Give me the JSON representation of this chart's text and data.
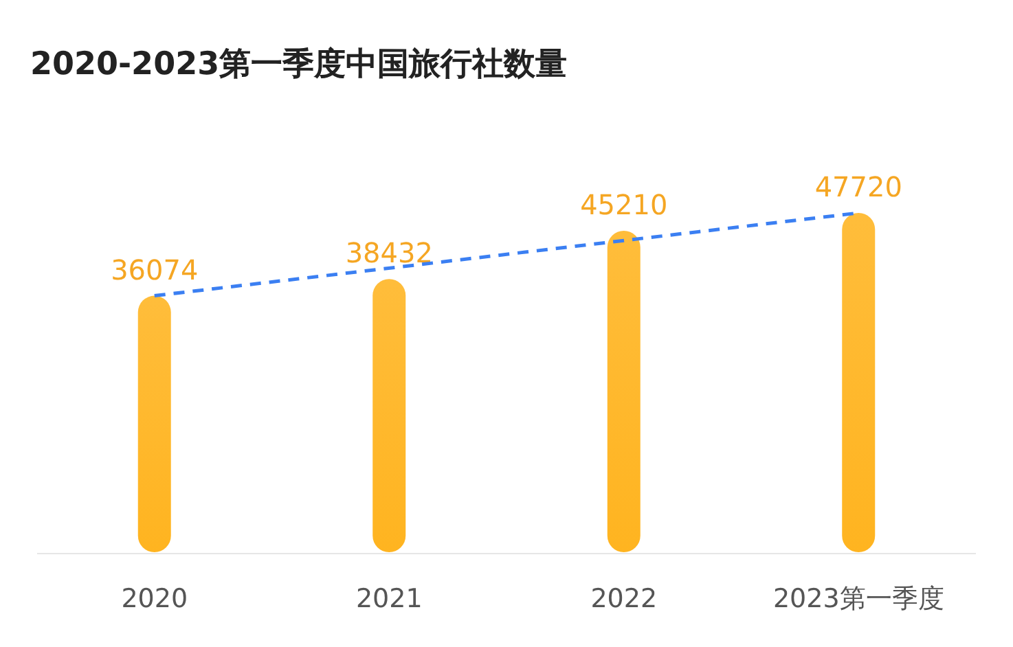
{
  "chart_data": {
    "type": "bar",
    "title": "2020-2023第一季度中国旅行社数量",
    "categories": [
      "2020",
      "2021",
      "2022",
      "2023第一季度"
    ],
    "series": [
      {
        "color": "#ffb420",
        "values": [
          36074,
          38432,
          45210,
          47720
        ],
        "value_labels": [
          "36074",
          "38432",
          "45210",
          "47720"
        ]
      },
      {
        "type": "line",
        "color": "#3b7ff2",
        "line_style": "dashed",
        "values": [
          36074,
          null,
          null,
          47720
        ]
      }
    ]
  }
}
